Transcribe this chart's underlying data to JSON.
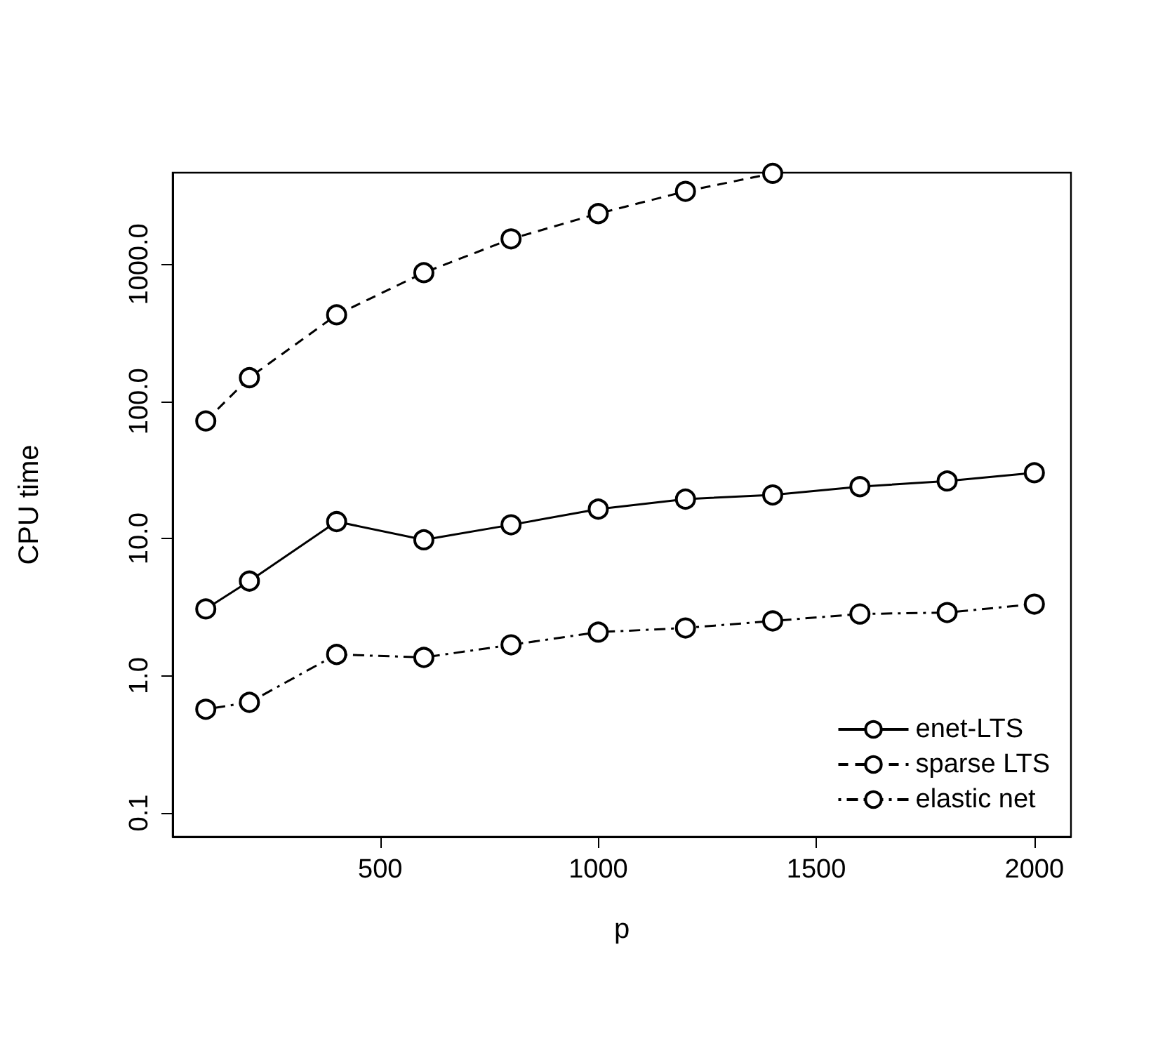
{
  "chart_data": {
    "type": "line",
    "xlabel": "p",
    "ylabel": "CPU time",
    "x": [
      100,
      200,
      400,
      600,
      800,
      1000,
      1200,
      1400,
      1600,
      1800,
      2000
    ],
    "series": [
      {
        "name": "enet-LTS",
        "color": "#000000",
        "line_style": "solid",
        "values": [
          3.07,
          4.9,
          13.3,
          9.8,
          12.6,
          16.4,
          19.4,
          20.8,
          23.9,
          26.3,
          30.2
        ]
      },
      {
        "name": "sparse LTS",
        "color": "#000000",
        "line_style": "dashed",
        "values": [
          72,
          149,
          428,
          868,
          1530,
          2340,
          3400,
          4600,
          null,
          null,
          null
        ]
      },
      {
        "name": "elastic net",
        "color": "#000000",
        "line_style": "dashdot",
        "values": [
          0.57,
          0.64,
          1.43,
          1.36,
          1.68,
          2.08,
          2.23,
          2.51,
          2.82,
          2.89,
          3.33
        ]
      }
    ],
    "log": "y",
    "xlim": [
      24,
      2084
    ],
    "ylim": [
      0.067,
      4650
    ],
    "xticks": [
      500,
      1000,
      1500,
      2000
    ],
    "yticks": [
      {
        "value": 0.1,
        "label": "0.1"
      },
      {
        "value": 1,
        "label": "1.0"
      },
      {
        "value": 10,
        "label": "10.0"
      },
      {
        "value": 100,
        "label": "100.0"
      },
      {
        "value": 1000,
        "label": "1000.0"
      }
    ],
    "marker": "circle",
    "grid": false,
    "legend": "bottom right"
  }
}
